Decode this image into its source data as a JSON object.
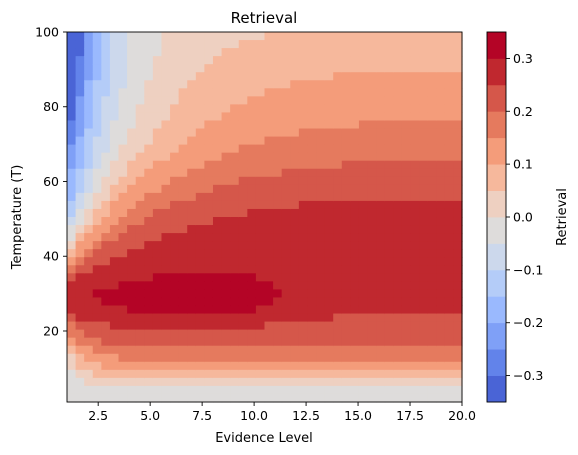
{
  "chart_data": {
    "type": "contourf",
    "title": "Retrieval",
    "xlabel": "Evidence Level",
    "ylabel": "Temperature (T)",
    "colorbar_label": "Retrieval",
    "colormap": "coolwarm",
    "xlim": [
      1,
      20
    ],
    "ylim": [
      1,
      100
    ],
    "x_ticks": [
      2.5,
      5.0,
      7.5,
      10.0,
      12.5,
      15.0,
      17.5,
      20.0
    ],
    "x_tick_labels": [
      "2.5",
      "5.0",
      "7.5",
      "10.0",
      "12.5",
      "15.0",
      "17.5",
      "20.0"
    ],
    "y_ticks": [
      20,
      40,
      60,
      80,
      100
    ],
    "y_tick_labels": [
      "20",
      "40",
      "60",
      "80",
      "100"
    ],
    "levels": [
      -0.35,
      -0.3,
      -0.25,
      -0.2,
      -0.15,
      -0.1,
      -0.05,
      0.0,
      0.05,
      0.1,
      0.15,
      0.2,
      0.25,
      0.3,
      0.35
    ],
    "colorbar_ticks": [
      -0.3,
      -0.2,
      -0.1,
      0.0,
      0.1,
      0.2,
      0.3
    ],
    "colorbar_tick_labels": [
      "−0.3",
      "−0.2",
      "−0.1",
      "0.0",
      "0.1",
      "0.2",
      "0.3"
    ],
    "level_colors": [
      "#4a64d6",
      "#6283ea",
      "#7fa0f7",
      "#9ab9fe",
      "#b4ccf8",
      "#ccd8ec",
      "#dedcdb",
      "#eed0c1",
      "#f6b89c",
      "#f49c7a",
      "#e57a5e",
      "#d5574a",
      "#c0282f",
      "#b40426"
    ],
    "field_model": {
      "x_samples": [
        1,
        1.5,
        2,
        2.5,
        3,
        4,
        5,
        6,
        7.5,
        9,
        10,
        11,
        12.5,
        15,
        17.5,
        20
      ],
      "y_samples": [
        1,
        3,
        5,
        8,
        12,
        16,
        20,
        25,
        30,
        40,
        50,
        60,
        70,
        80,
        90,
        100
      ],
      "description_values": "retrieval peaks near 0.32 around evidence 5-11 at temperature 25-33, positive band 20-90, negative at low evidence/high temp and low temp"
    }
  }
}
